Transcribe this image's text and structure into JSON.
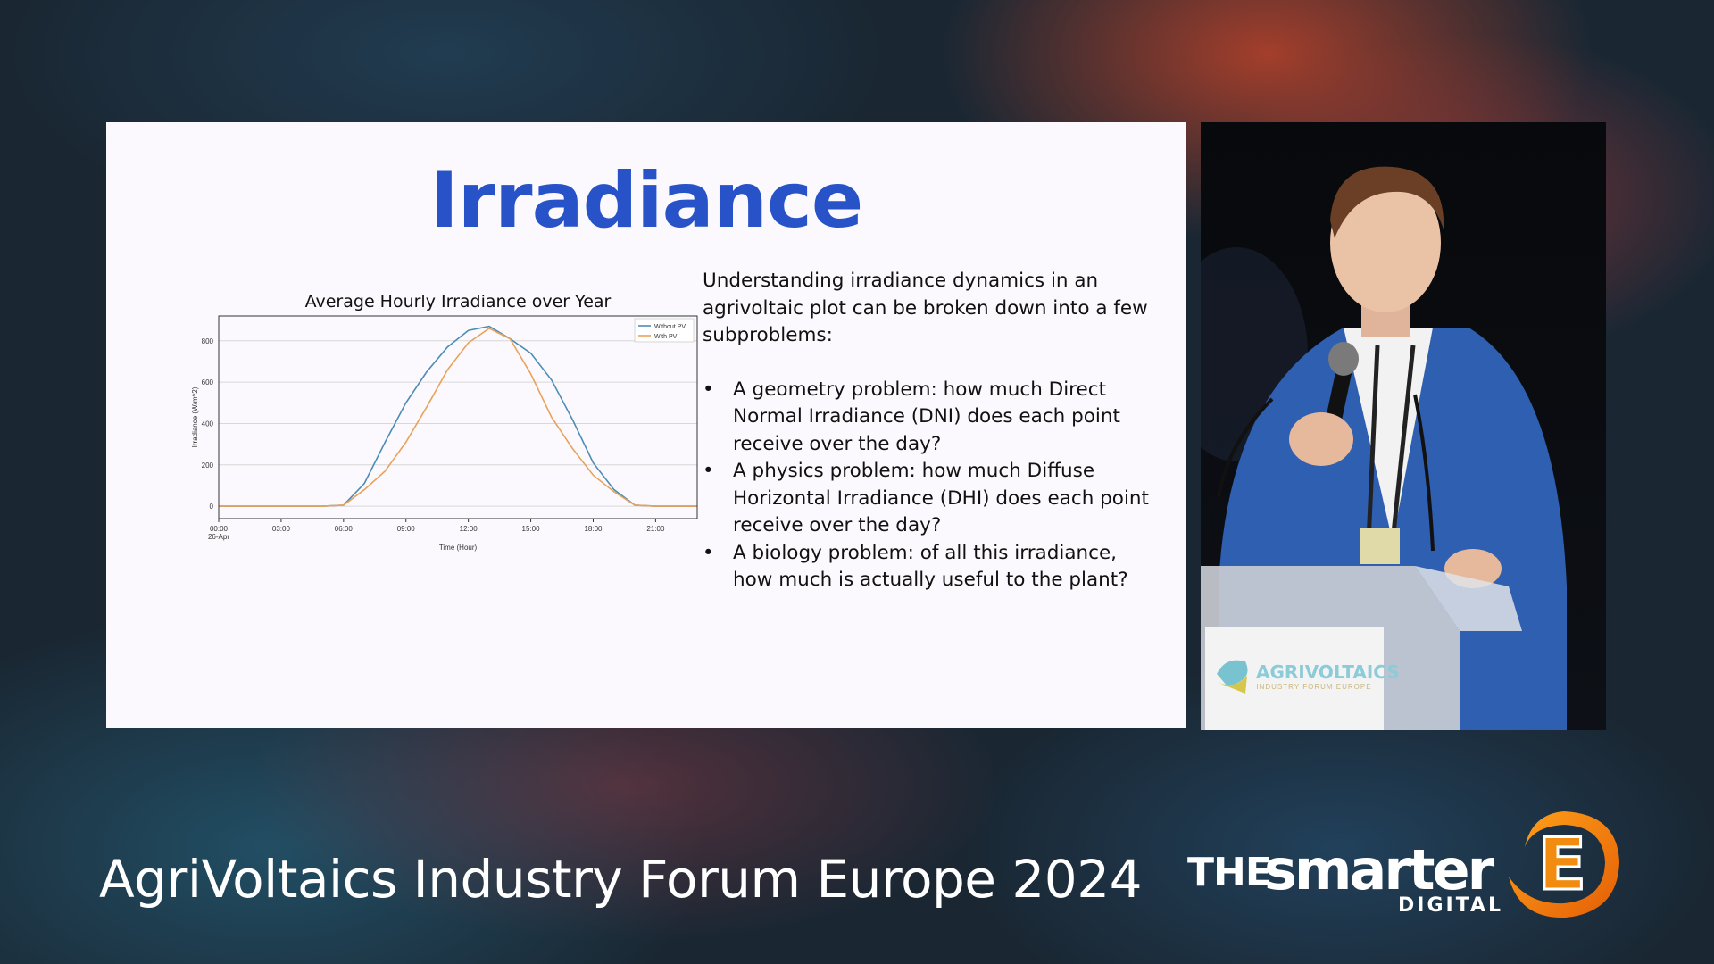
{
  "slide": {
    "title": "Irradiance",
    "intro": "Understanding irradiance dynamics in an agrivoltaic plot can be broken down into a few subproblems:",
    "bullet_symbol": "•",
    "bullets": [
      "A geometry problem: how much Direct Normal Irradiance (DNI) does each point receive over the day?",
      "A physics problem: how much Diffuse Horizontal Irradiance (DHI) does each point receive over the day?",
      "A biology problem: of all this irradiance, how much is actually useful to the plant?"
    ]
  },
  "chart_data": {
    "type": "line",
    "title": "Average Hourly Irradiance over Year",
    "xlabel": "Time (Hour)",
    "ylabel": "Irradiance (W/m^2)",
    "x": [
      0,
      1,
      2,
      3,
      4,
      5,
      6,
      7,
      8,
      9,
      10,
      11,
      12,
      13,
      14,
      15,
      16,
      17,
      18,
      19,
      20,
      21,
      22,
      23
    ],
    "x_tick_labels": [
      "00:00",
      "03:00",
      "06:00",
      "09:00",
      "12:00",
      "15:00",
      "18:00",
      "21:00"
    ],
    "x_tick_values": [
      0,
      3,
      6,
      9,
      12,
      15,
      18,
      21
    ],
    "x_first_sublabel": "26-Apr",
    "xlim": [
      0,
      23
    ],
    "y_tick_values": [
      0,
      200,
      400,
      600,
      800
    ],
    "ylim": [
      -60,
      920
    ],
    "grid": true,
    "legend_position": "top-right",
    "series": [
      {
        "name": "Without PV",
        "color": "#4c8cb5",
        "values": [
          0,
          0,
          0,
          0,
          0,
          0,
          5,
          110,
          310,
          500,
          650,
          770,
          850,
          870,
          810,
          740,
          610,
          420,
          210,
          80,
          5,
          0,
          0,
          0
        ]
      },
      {
        "name": "With PV",
        "color": "#e9a25a",
        "values": [
          0,
          0,
          0,
          0,
          0,
          0,
          5,
          80,
          170,
          310,
          480,
          660,
          790,
          860,
          810,
          640,
          430,
          280,
          150,
          70,
          5,
          0,
          0,
          0
        ]
      }
    ]
  },
  "podium_sign": {
    "title": "AGRIVOLTAICS",
    "subtitle": "INDUSTRY FORUM EUROPE"
  },
  "footer": {
    "event_title": "AgriVoltaics Industry Forum Europe 2024"
  },
  "logo": {
    "the": "THE",
    "smarter": "smarter",
    "digital": "DIGITAL",
    "mark": "E",
    "accent_color": "#f28c10"
  }
}
